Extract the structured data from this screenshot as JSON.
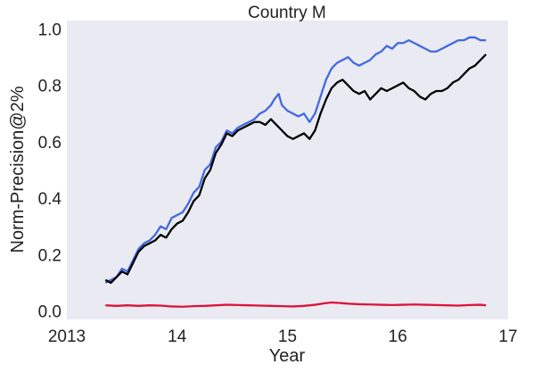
{
  "chart_data": {
    "type": "line",
    "title": "Country M",
    "xlabel": "Year",
    "ylabel": "Norm-Precision@2%",
    "xlim": [
      2013.0,
      2017.0
    ],
    "ylim": [
      -0.03,
      1.03
    ],
    "x_ticks": [
      2013,
      2014,
      2015,
      2016,
      2017
    ],
    "x_tick_labels": [
      "2013",
      "14",
      "15",
      "16",
      "17"
    ],
    "y_ticks": [
      0.0,
      0.2,
      0.4,
      0.6,
      0.8,
      1.0
    ],
    "y_tick_labels": [
      "0.0",
      "0.2",
      "0.4",
      "0.6",
      "0.8",
      "1.0"
    ],
    "grid": false,
    "background": "#eaeaf2",
    "series": [
      {
        "color": "#4169e1",
        "points": [
          [
            2013.35,
            0.1
          ],
          [
            2013.4,
            0.11
          ],
          [
            2013.45,
            0.12
          ],
          [
            2013.5,
            0.15
          ],
          [
            2013.55,
            0.14
          ],
          [
            2013.6,
            0.18
          ],
          [
            2013.65,
            0.22
          ],
          [
            2013.7,
            0.24
          ],
          [
            2013.75,
            0.25
          ],
          [
            2013.8,
            0.27
          ],
          [
            2013.85,
            0.3
          ],
          [
            2013.9,
            0.29
          ],
          [
            2013.95,
            0.33
          ],
          [
            2014.0,
            0.34
          ],
          [
            2014.05,
            0.35
          ],
          [
            2014.1,
            0.38
          ],
          [
            2014.15,
            0.42
          ],
          [
            2014.2,
            0.44
          ],
          [
            2014.25,
            0.5
          ],
          [
            2014.3,
            0.52
          ],
          [
            2014.35,
            0.58
          ],
          [
            2014.4,
            0.6
          ],
          [
            2014.45,
            0.64
          ],
          [
            2014.5,
            0.63
          ],
          [
            2014.55,
            0.65
          ],
          [
            2014.6,
            0.66
          ],
          [
            2014.65,
            0.67
          ],
          [
            2014.7,
            0.68
          ],
          [
            2014.75,
            0.7
          ],
          [
            2014.8,
            0.71
          ],
          [
            2014.85,
            0.73
          ],
          [
            2014.88,
            0.75
          ],
          [
            2014.92,
            0.77
          ],
          [
            2014.95,
            0.73
          ],
          [
            2015.0,
            0.71
          ],
          [
            2015.05,
            0.7
          ],
          [
            2015.1,
            0.69
          ],
          [
            2015.15,
            0.7
          ],
          [
            2015.2,
            0.67
          ],
          [
            2015.25,
            0.7
          ],
          [
            2015.3,
            0.76
          ],
          [
            2015.35,
            0.82
          ],
          [
            2015.4,
            0.86
          ],
          [
            2015.45,
            0.88
          ],
          [
            2015.5,
            0.89
          ],
          [
            2015.55,
            0.9
          ],
          [
            2015.6,
            0.88
          ],
          [
            2015.65,
            0.87
          ],
          [
            2015.7,
            0.88
          ],
          [
            2015.75,
            0.89
          ],
          [
            2015.8,
            0.91
          ],
          [
            2015.85,
            0.92
          ],
          [
            2015.9,
            0.94
          ],
          [
            2015.95,
            0.93
          ],
          [
            2016.0,
            0.95
          ],
          [
            2016.05,
            0.95
          ],
          [
            2016.1,
            0.96
          ],
          [
            2016.15,
            0.95
          ],
          [
            2016.2,
            0.94
          ],
          [
            2016.25,
            0.93
          ],
          [
            2016.3,
            0.92
          ],
          [
            2016.35,
            0.92
          ],
          [
            2016.4,
            0.93
          ],
          [
            2016.45,
            0.94
          ],
          [
            2016.5,
            0.95
          ],
          [
            2016.55,
            0.96
          ],
          [
            2016.6,
            0.96
          ],
          [
            2016.65,
            0.97
          ],
          [
            2016.7,
            0.97
          ],
          [
            2016.75,
            0.96
          ],
          [
            2016.8,
            0.96
          ]
        ]
      },
      {
        "color": "#000000",
        "points": [
          [
            2013.35,
            0.11
          ],
          [
            2013.4,
            0.1
          ],
          [
            2013.45,
            0.12
          ],
          [
            2013.5,
            0.14
          ],
          [
            2013.55,
            0.13
          ],
          [
            2013.6,
            0.17
          ],
          [
            2013.65,
            0.21
          ],
          [
            2013.7,
            0.23
          ],
          [
            2013.75,
            0.24
          ],
          [
            2013.8,
            0.25
          ],
          [
            2013.85,
            0.27
          ],
          [
            2013.9,
            0.26
          ],
          [
            2013.95,
            0.29
          ],
          [
            2014.0,
            0.31
          ],
          [
            2014.05,
            0.32
          ],
          [
            2014.1,
            0.35
          ],
          [
            2014.15,
            0.39
          ],
          [
            2014.2,
            0.41
          ],
          [
            2014.25,
            0.47
          ],
          [
            2014.3,
            0.5
          ],
          [
            2014.35,
            0.56
          ],
          [
            2014.4,
            0.59
          ],
          [
            2014.45,
            0.63
          ],
          [
            2014.5,
            0.62
          ],
          [
            2014.55,
            0.64
          ],
          [
            2014.6,
            0.65
          ],
          [
            2014.65,
            0.66
          ],
          [
            2014.7,
            0.67
          ],
          [
            2014.75,
            0.67
          ],
          [
            2014.8,
            0.66
          ],
          [
            2014.85,
            0.68
          ],
          [
            2014.9,
            0.66
          ],
          [
            2014.95,
            0.64
          ],
          [
            2015.0,
            0.62
          ],
          [
            2015.05,
            0.61
          ],
          [
            2015.1,
            0.62
          ],
          [
            2015.15,
            0.63
          ],
          [
            2015.2,
            0.61
          ],
          [
            2015.25,
            0.64
          ],
          [
            2015.3,
            0.7
          ],
          [
            2015.35,
            0.75
          ],
          [
            2015.4,
            0.79
          ],
          [
            2015.45,
            0.81
          ],
          [
            2015.5,
            0.82
          ],
          [
            2015.55,
            0.8
          ],
          [
            2015.6,
            0.78
          ],
          [
            2015.65,
            0.77
          ],
          [
            2015.7,
            0.78
          ],
          [
            2015.75,
            0.75
          ],
          [
            2015.8,
            0.77
          ],
          [
            2015.85,
            0.79
          ],
          [
            2015.9,
            0.78
          ],
          [
            2015.95,
            0.79
          ],
          [
            2016.0,
            0.8
          ],
          [
            2016.05,
            0.81
          ],
          [
            2016.1,
            0.79
          ],
          [
            2016.15,
            0.78
          ],
          [
            2016.2,
            0.76
          ],
          [
            2016.25,
            0.75
          ],
          [
            2016.3,
            0.77
          ],
          [
            2016.35,
            0.78
          ],
          [
            2016.4,
            0.78
          ],
          [
            2016.45,
            0.79
          ],
          [
            2016.5,
            0.81
          ],
          [
            2016.55,
            0.82
          ],
          [
            2016.6,
            0.84
          ],
          [
            2016.65,
            0.86
          ],
          [
            2016.7,
            0.87
          ],
          [
            2016.75,
            0.89
          ],
          [
            2016.8,
            0.91
          ]
        ]
      },
      {
        "color": "#dc143c",
        "points": [
          [
            2013.35,
            0.02
          ],
          [
            2013.45,
            0.018
          ],
          [
            2013.55,
            0.02
          ],
          [
            2013.65,
            0.018
          ],
          [
            2013.75,
            0.02
          ],
          [
            2013.85,
            0.019
          ],
          [
            2013.95,
            0.016
          ],
          [
            2014.05,
            0.015
          ],
          [
            2014.15,
            0.017
          ],
          [
            2014.25,
            0.018
          ],
          [
            2014.35,
            0.02
          ],
          [
            2014.45,
            0.022
          ],
          [
            2014.55,
            0.021
          ],
          [
            2014.65,
            0.02
          ],
          [
            2014.75,
            0.019
          ],
          [
            2014.85,
            0.018
          ],
          [
            2014.95,
            0.017
          ],
          [
            2015.05,
            0.016
          ],
          [
            2015.15,
            0.018
          ],
          [
            2015.25,
            0.022
          ],
          [
            2015.35,
            0.028
          ],
          [
            2015.4,
            0.03
          ],
          [
            2015.45,
            0.029
          ],
          [
            2015.55,
            0.026
          ],
          [
            2015.65,
            0.024
          ],
          [
            2015.75,
            0.023
          ],
          [
            2015.85,
            0.022
          ],
          [
            2015.95,
            0.021
          ],
          [
            2016.05,
            0.022
          ],
          [
            2016.15,
            0.023
          ],
          [
            2016.25,
            0.022
          ],
          [
            2016.35,
            0.021
          ],
          [
            2016.45,
            0.02
          ],
          [
            2016.55,
            0.019
          ],
          [
            2016.65,
            0.021
          ],
          [
            2016.75,
            0.022
          ],
          [
            2016.8,
            0.02
          ]
        ]
      }
    ]
  }
}
